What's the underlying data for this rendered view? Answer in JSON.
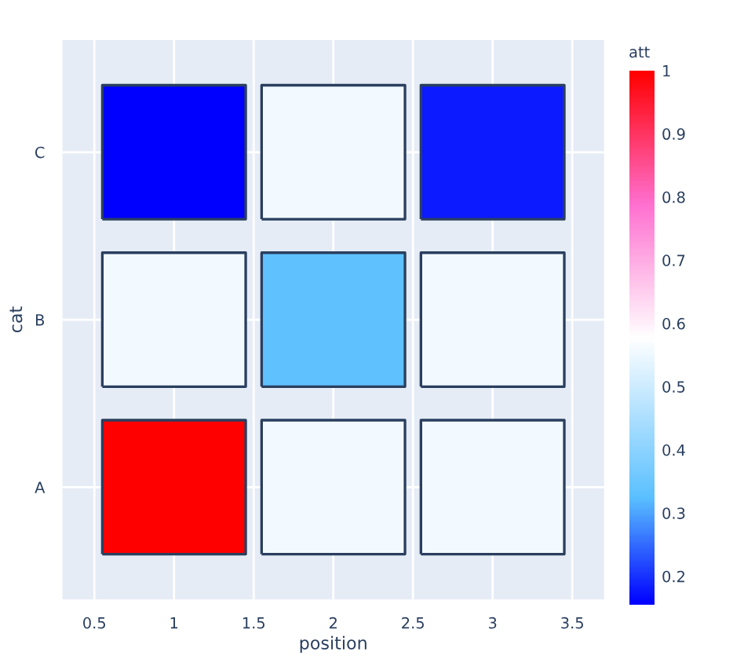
{
  "chart_data": {
    "type": "heatmap",
    "xlabel": "position",
    "ylabel": "cat",
    "clabel": "att",
    "x": [
      1,
      2,
      3
    ],
    "y_categories": [
      "C",
      "B",
      "A"
    ],
    "cells": [
      [
        0.155,
        0.56,
        0.18
      ],
      [
        0.56,
        0.33,
        0.56
      ],
      [
        1,
        0.56,
        0.56
      ]
    ],
    "xlim": [
      0.3,
      3.7
    ],
    "xticks": [
      0.5,
      1,
      1.5,
      2,
      2.5,
      3,
      3.5
    ],
    "clim": [
      0.155,
      1
    ],
    "cticks": [
      0.2,
      0.3,
      0.4,
      0.5,
      0.6,
      0.7,
      0.8,
      0.9,
      1
    ],
    "grid": true
  }
}
